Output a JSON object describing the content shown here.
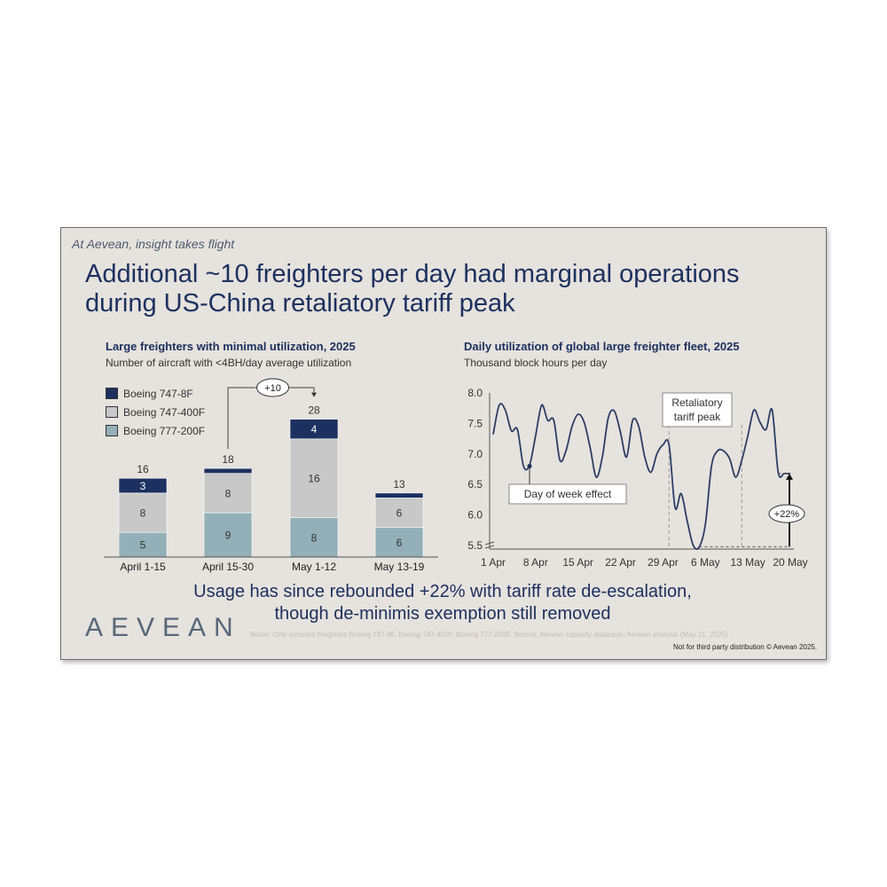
{
  "tagline": "At Aevean, insight takes flight",
  "title_line1": "Additional ~10 freighters per day had marginal operations",
  "title_line2": "during US-China retaliatory tariff peak",
  "conclusion_line1": "Usage has since rebounded +22% with tariff rate de-escalation,",
  "conclusion_line2": "though de-minimis exemption still removed",
  "logo": "AEVEAN",
  "notes": "Notes: Only includes freighters Boeing 747-8F, Boeing 747-400F, Boeing 777-200F. Source: Aevean capacity database; Aevean analysis (May 21, 2025)",
  "footer": "Not for third party distribution © Aevean 2025.",
  "colors": {
    "navy": "#1c3160",
    "gray": "#c8c8c8",
    "teal": "#93b0b9",
    "line": "#2b3e66"
  },
  "chart_data": [
    {
      "type": "bar",
      "stacked": true,
      "title": "Large freighters with minimal utilization, 2025",
      "subtitle": "Number of aircraft with <4BH/day average utilization",
      "categories": [
        "April 1-15",
        "April 15-30",
        "May 1-12",
        "May 13-19"
      ],
      "series": [
        {
          "name": "Boeing 777-200F",
          "values": [
            5,
            9,
            8,
            6
          ],
          "color": "#93b0b9",
          "labels": [
            "5",
            "9",
            "8",
            "6"
          ]
        },
        {
          "name": "Boeing 747-400F",
          "values": [
            8,
            8,
            16,
            6
          ],
          "color": "#c8c8c8",
          "labels": [
            "8",
            "8",
            "16",
            "6"
          ]
        },
        {
          "name": "Boeing 747-8F",
          "values": [
            3,
            1,
            4,
            1
          ],
          "color": "#1c3160",
          "labels": [
            "3",
            "",
            "4",
            ""
          ]
        }
      ],
      "totals": [
        "16",
        "18",
        "28",
        "13"
      ],
      "legend": [
        "Boeing 747-8F",
        "Boeing 747-400F",
        "Boeing 777-200F"
      ],
      "annotation": "+10",
      "legend_position": "top-left",
      "ylim": [
        0,
        28
      ]
    },
    {
      "type": "line",
      "title": "Daily utilization of global large freighter fleet, 2025",
      "subtitle": "Thousand block hours per day",
      "x_ticks": [
        "1 Apr",
        "8 Apr",
        "15 Apr",
        "22 Apr",
        "29 Apr",
        "6 May",
        "13 May",
        "20 May"
      ],
      "y_ticks": [
        "8.0",
        "7.5",
        "7.0",
        "6.5",
        "6.0",
        "5.5"
      ],
      "ylim": [
        5.5,
        8.0
      ],
      "x_day_range": [
        0,
        49
      ],
      "x": [
        0,
        1,
        2,
        3,
        4,
        5,
        6,
        7,
        8,
        9,
        10,
        11,
        12,
        13,
        14,
        15,
        16,
        17,
        18,
        19,
        20,
        21,
        22,
        23,
        24,
        25,
        26,
        27,
        28,
        29,
        30,
        31,
        32,
        33,
        34,
        35,
        36,
        37,
        38,
        39,
        40,
        41,
        42,
        43,
        44,
        45,
        46,
        47,
        48,
        49
      ],
      "values": [
        7.32,
        7.8,
        7.72,
        7.38,
        7.4,
        6.8,
        6.82,
        7.3,
        7.8,
        7.55,
        7.55,
        6.9,
        7.05,
        7.45,
        7.65,
        7.52,
        7.1,
        6.62,
        6.95,
        7.6,
        7.7,
        7.35,
        6.95,
        7.55,
        7.45,
        6.95,
        6.7,
        7.0,
        7.15,
        7.15,
        6.12,
        6.35,
        5.9,
        5.5,
        5.48,
        5.85,
        6.8,
        7.05,
        7.05,
        6.92,
        6.62,
        6.9,
        7.3,
        7.72,
        7.52,
        7.4,
        7.72,
        6.7,
        6.68,
        6.68
      ],
      "annotations": {
        "day_of_week": "Day of week effect",
        "tariff_peak_line1": "Retaliatory",
        "tariff_peak_line2": "tariff peak",
        "rebound": "+22%"
      },
      "grid": false
    }
  ]
}
